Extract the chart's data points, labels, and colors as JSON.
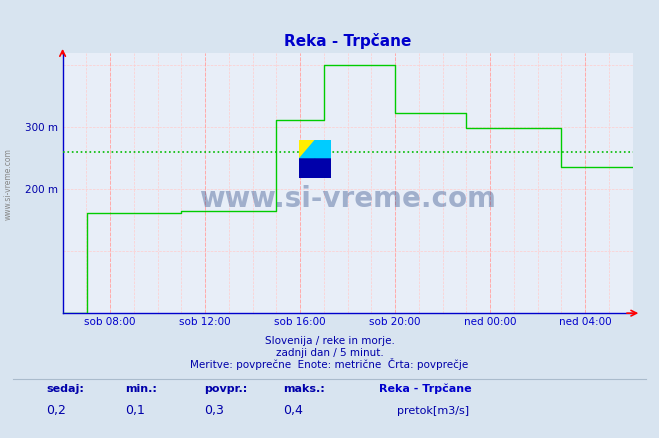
{
  "title": "Reka - Trpčane",
  "bg_color": "#d8e4f0",
  "plot_bg_color": "#e8eef8",
  "line_color": "#00cc00",
  "avg_line_color": "#00bb00",
  "grid_color_major": "#ffaaaa",
  "grid_color_minor": "#ffcccc",
  "axis_color": "#0000cc",
  "title_color": "#0000cc",
  "ylabel_color": "#0000aa",
  "text_color": "#0000aa",
  "watermark": "www.si-vreme.com",
  "xlabel_ticks": [
    "sob 08:00",
    "sob 12:00",
    "sob 16:00",
    "sob 20:00",
    "ned 00:00",
    "ned 04:00"
  ],
  "ylim": [
    0,
    420
  ],
  "avg_value": 260,
  "footer_line1": "Slovenija / reke in morje.",
  "footer_line2": "zadnji dan / 5 minut.",
  "footer_line3": "Meritve: povprečne  Enote: metrične  Črta: povprečje",
  "stat_labels": [
    "sedaj:",
    "min.:",
    "povpr.:",
    "maks.:"
  ],
  "stat_values": [
    "0,2",
    "0,1",
    "0,3",
    "0,4"
  ],
  "legend_title": "Reka - Trpčane",
  "legend_label": "pretok[m3/s]",
  "legend_color": "#00cc00",
  "step_data_x": [
    0.0,
    0.042,
    0.042,
    0.208,
    0.208,
    0.375,
    0.375,
    0.458,
    0.458,
    0.583,
    0.583,
    0.708,
    0.708,
    0.875,
    0.875,
    1.0
  ],
  "step_data_y": [
    0,
    0,
    162,
    162,
    164,
    164,
    312,
    312,
    400,
    400,
    323,
    323,
    298,
    298,
    235,
    235
  ],
  "side_text": "www.si-vreme.com"
}
